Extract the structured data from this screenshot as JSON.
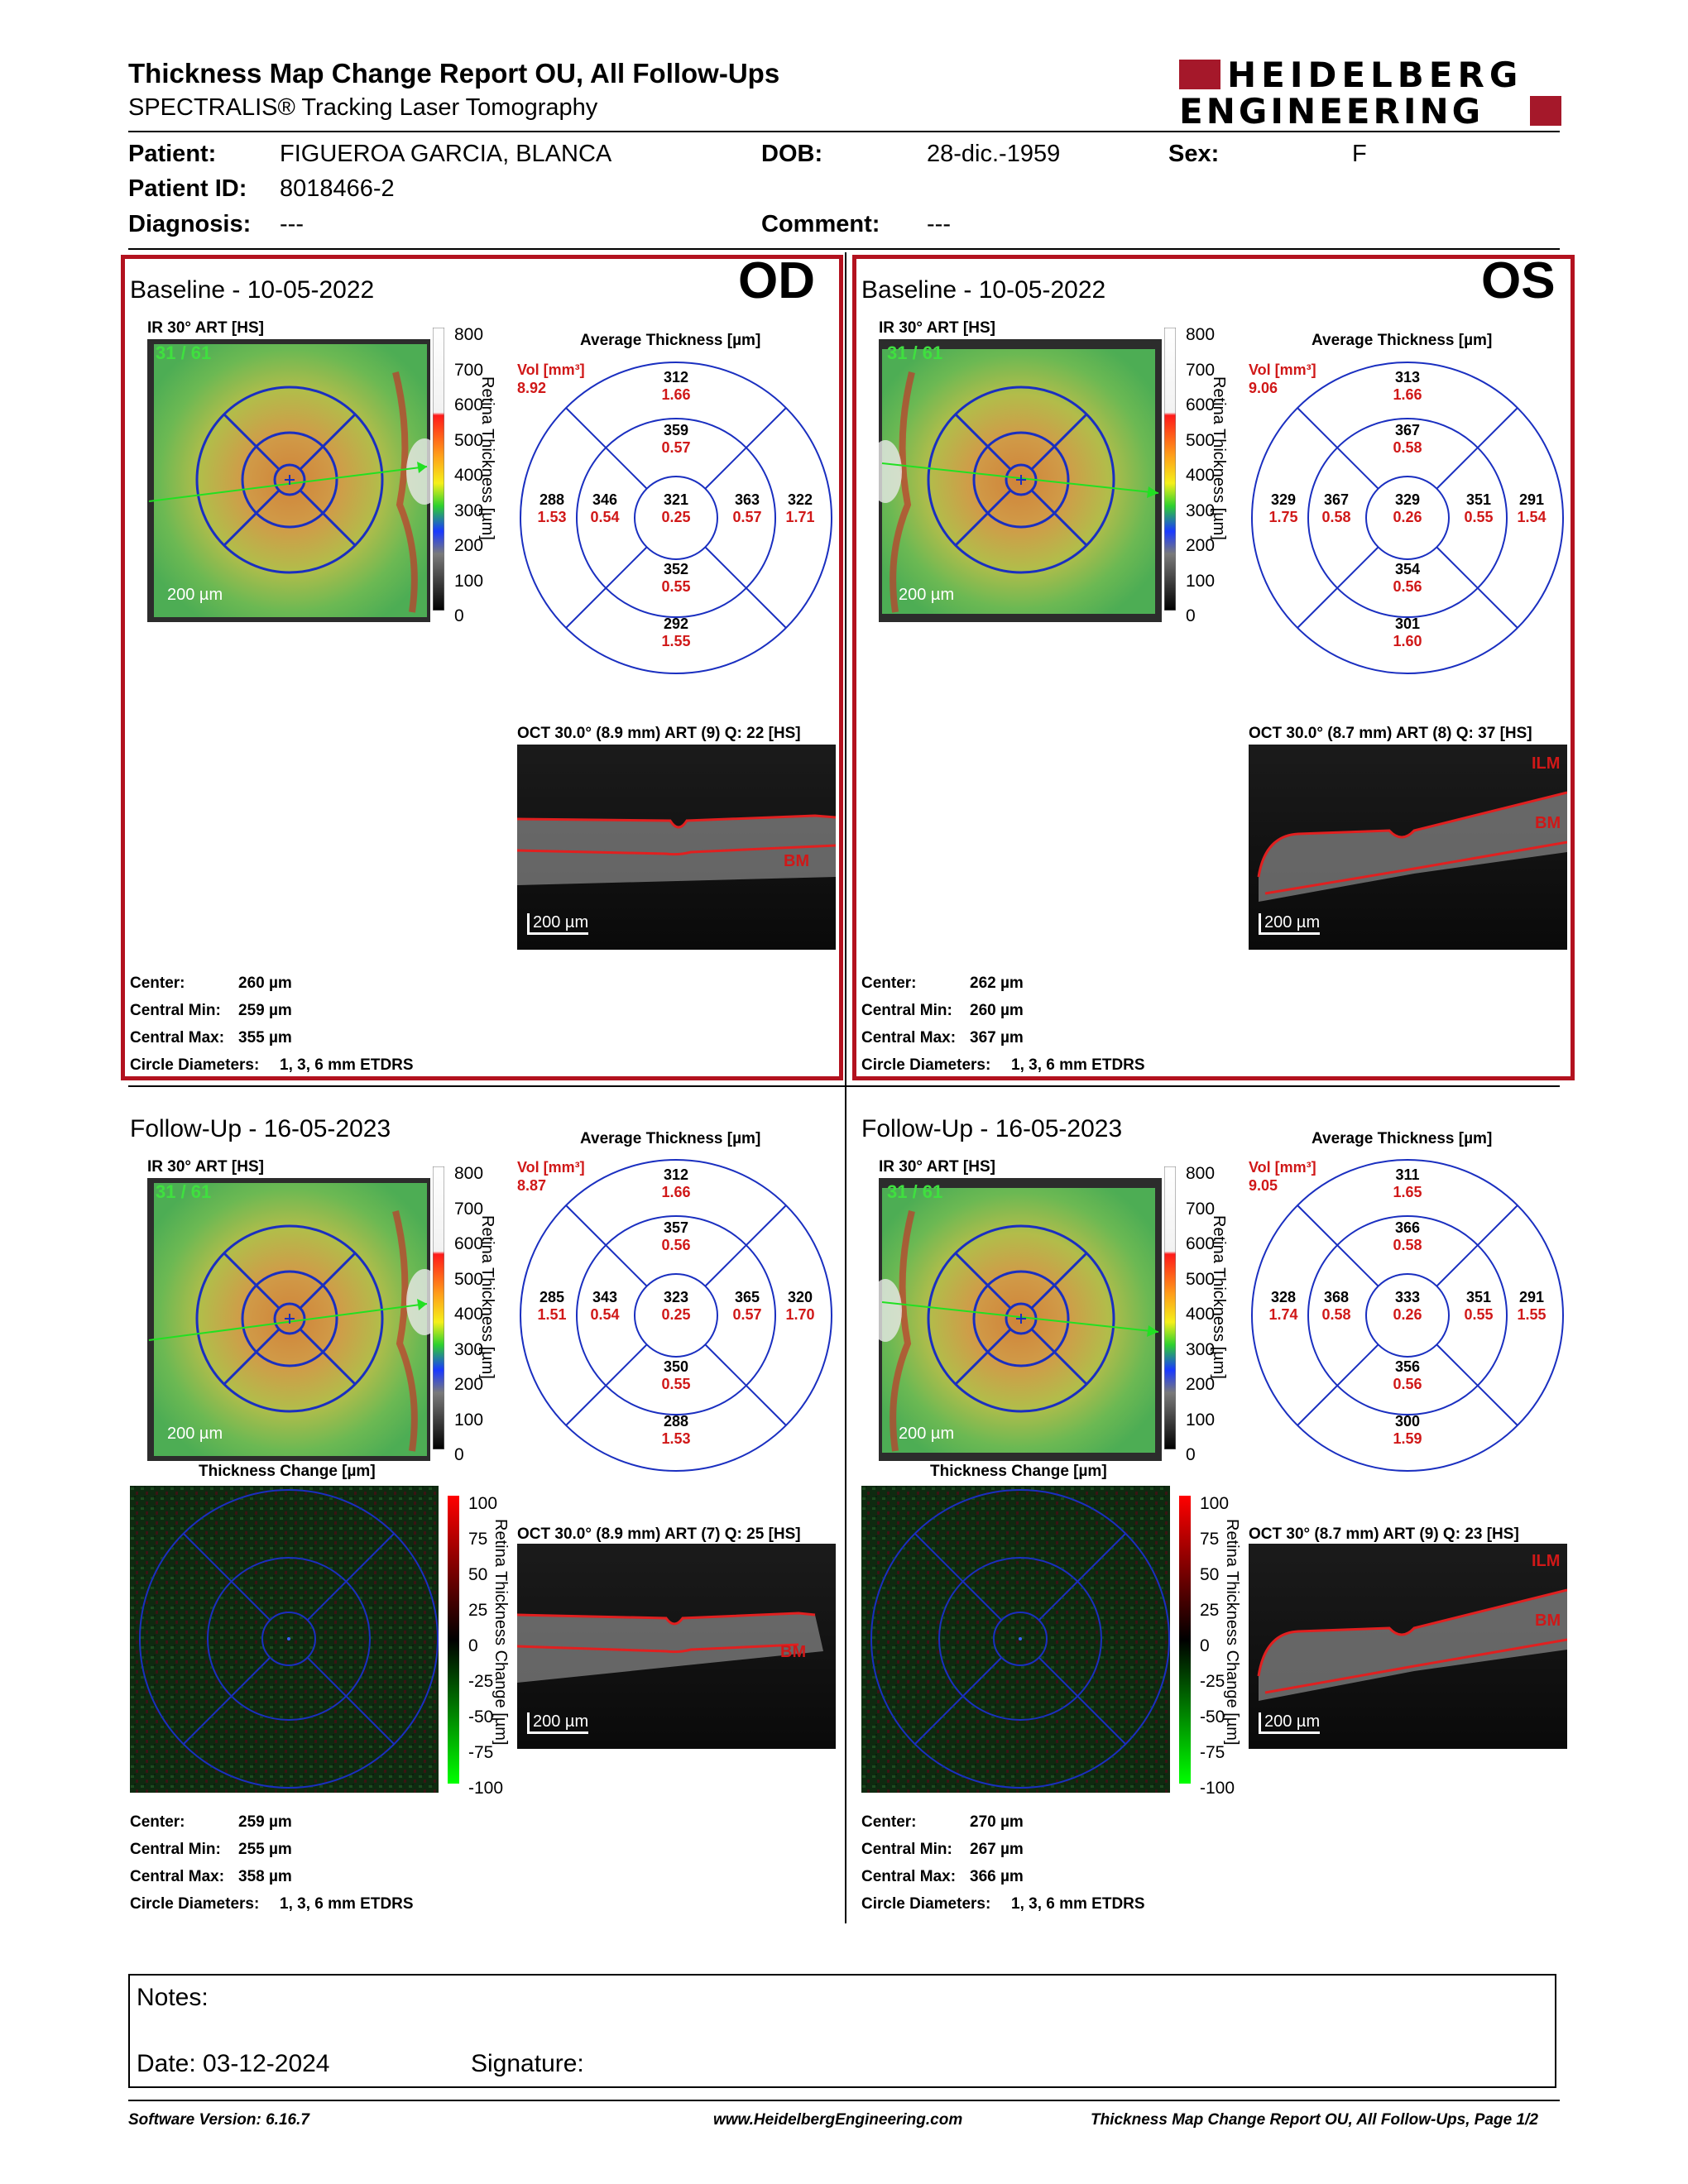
{
  "header": {
    "title": "Thickness Map Change Report OU, All Follow-Ups",
    "subtitle": "SPECTRALIS® Tracking Laser Tomography",
    "logo_line1": "HEIDELBERG",
    "logo_line2": "ENGINEERING",
    "brand_color": "#a5182a"
  },
  "patient": {
    "patient_label": "Patient:",
    "patient_value": "FIGUEROA GARCIA, BLANCA",
    "dob_label": "DOB:",
    "dob_value": "28-dic.-1959",
    "sex_label": "Sex:",
    "sex_value": "F",
    "id_label": "Patient ID:",
    "id_value": "8018466-2",
    "diagnosis_label": "Diagnosis:",
    "diagnosis_value": "---",
    "comment_label": "Comment:",
    "comment_value": "---"
  },
  "labels": {
    "ir": "IR 30° ART [HS]",
    "frame_count": "31 / 61",
    "scale": "200 µm",
    "avg_thickness": "Average Thickness [µm]",
    "vol": "Vol [mm³]",
    "retina_thickness": "Retina Thickness [µm]",
    "retina_thickness_change": "Retina Thickness Change [µm]",
    "thickness_change": "Thickness Change [µm]",
    "center": "Center:",
    "central_min": "Central Min:",
    "central_max": "Central Max:",
    "circle_diameters": "Circle Diameters:",
    "ilm": "ILM",
    "bm": "BM",
    "thickness_ticks": [
      "800",
      "700",
      "600",
      "500",
      "400",
      "300",
      "200",
      "100",
      "0"
    ],
    "change_ticks": [
      "100",
      "75",
      "50",
      "25",
      "0",
      "-25",
      "-50",
      "-75",
      "-100"
    ]
  },
  "panels": {
    "od_baseline": {
      "title": "Baseline - 10-05-2022",
      "eye": "OD",
      "vol": "8.92",
      "sectors": {
        "S_outer": [
          "312",
          "1.66"
        ],
        "S_inner": [
          "359",
          "0.57"
        ],
        "T_outer": [
          "288",
          "1.53"
        ],
        "T_inner": [
          "346",
          "0.54"
        ],
        "center": [
          "321",
          "0.25"
        ],
        "N_inner": [
          "363",
          "0.57"
        ],
        "N_outer": [
          "322",
          "1.71"
        ],
        "I_inner": [
          "352",
          "0.55"
        ],
        "I_outer": [
          "292",
          "1.55"
        ]
      },
      "oct": "OCT 30.0° (8.9 mm) ART (9) Q: 22 [HS]",
      "stats": {
        "center": "260 µm",
        "min": "259 µm",
        "max": "355 µm",
        "diam": "1, 3, 6 mm ETDRS"
      }
    },
    "os_baseline": {
      "title": "Baseline - 10-05-2022",
      "eye": "OS",
      "vol": "9.06",
      "sectors": {
        "S_outer": [
          "313",
          "1.66"
        ],
        "S_inner": [
          "367",
          "0.58"
        ],
        "T_outer": [
          "329",
          "1.75"
        ],
        "T_inner": [
          "367",
          "0.58"
        ],
        "center": [
          "329",
          "0.26"
        ],
        "N_inner": [
          "351",
          "0.55"
        ],
        "N_outer": [
          "291",
          "1.54"
        ],
        "I_inner": [
          "354",
          "0.56"
        ],
        "I_outer": [
          "301",
          "1.60"
        ]
      },
      "oct": "OCT 30.0° (8.7 mm) ART (8) Q: 37 [HS]",
      "stats": {
        "center": "262 µm",
        "min": "260 µm",
        "max": "367 µm",
        "diam": "1, 3, 6 mm ETDRS"
      }
    },
    "od_followup": {
      "title": "Follow-Up - 16-05-2023",
      "vol": "8.87",
      "sectors": {
        "S_outer": [
          "312",
          "1.66"
        ],
        "S_inner": [
          "357",
          "0.56"
        ],
        "T_outer": [
          "285",
          "1.51"
        ],
        "T_inner": [
          "343",
          "0.54"
        ],
        "center": [
          "323",
          "0.25"
        ],
        "N_inner": [
          "365",
          "0.57"
        ],
        "N_outer": [
          "320",
          "1.70"
        ],
        "I_inner": [
          "350",
          "0.55"
        ],
        "I_outer": [
          "288",
          "1.53"
        ]
      },
      "oct": "OCT 30.0° (8.9 mm) ART (7) Q: 25 [HS]",
      "stats": {
        "center": "259 µm",
        "min": "255 µm",
        "max": "358 µm",
        "diam": "1, 3, 6 mm ETDRS"
      }
    },
    "os_followup": {
      "title": "Follow-Up - 16-05-2023",
      "vol": "9.05",
      "sectors": {
        "S_outer": [
          "311",
          "1.65"
        ],
        "S_inner": [
          "366",
          "0.58"
        ],
        "T_outer": [
          "328",
          "1.74"
        ],
        "T_inner": [
          "368",
          "0.58"
        ],
        "center": [
          "333",
          "0.26"
        ],
        "N_inner": [
          "351",
          "0.55"
        ],
        "N_outer": [
          "291",
          "1.55"
        ],
        "I_inner": [
          "356",
          "0.56"
        ],
        "I_outer": [
          "300",
          "1.59"
        ]
      },
      "oct": "OCT 30° (8.7 mm) ART (9) Q: 23 [HS]",
      "stats": {
        "center": "270 µm",
        "min": "267 µm",
        "max": "366 µm",
        "diam": "1, 3, 6 mm ETDRS"
      }
    }
  },
  "notes": {
    "notes_label": "Notes:",
    "date_label": "Date: 03-12-2024",
    "signature_label": "Signature:"
  },
  "footer": {
    "software": "Software Version: 6.16.7",
    "website": "www.HeidelbergEngineering.com",
    "page": "Thickness Map Change Report OU, All Follow-Ups, Page 1/2"
  }
}
